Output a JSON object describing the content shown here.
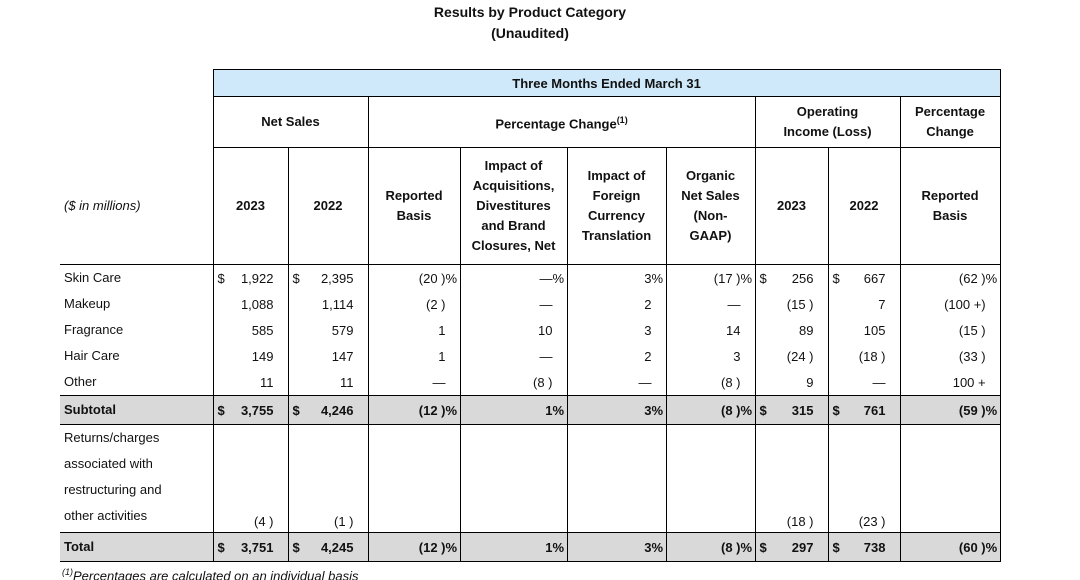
{
  "page_title": {
    "line1": "Results by Product Category",
    "line2": "(Unaudited)"
  },
  "table": {
    "span_header": "Three Months Ended March 31",
    "corner_label": "($ in millions)",
    "colors": {
      "span_header_bg": "#cfe9fa",
      "summary_row_bg": "#d9d9d9",
      "border": "#000000"
    },
    "groups": [
      {
        "label": "Net Sales",
        "sup": ""
      },
      {
        "label": "Percentage Change",
        "sup": "(1)"
      },
      {
        "label": "Operating\nIncome (Loss)",
        "sup": ""
      },
      {
        "label": "Percentage\nChange",
        "sup": ""
      }
    ],
    "columns": [
      "2023",
      "2022",
      "Reported\nBasis",
      "Impact of\nAcquisitions,\nDivestitures\nand Brand\nClosures, Net",
      "Impact of\nForeign\nCurrency\nTranslation",
      "Organic\nNet Sales\n(Non-\nGAAP)",
      "2023",
      "2022",
      "Reported\nBasis"
    ],
    "rows": [
      {
        "label": "Skin Care",
        "style": "normal",
        "cells": [
          {
            "d": "$",
            "v": "1,922",
            "s": ""
          },
          {
            "d": "$",
            "v": "2,395",
            "s": ""
          },
          {
            "d": "",
            "v": "(20 )",
            "s": "%"
          },
          {
            "d": "",
            "v": "—",
            "s": "%"
          },
          {
            "d": "",
            "v": "3",
            "s": "%"
          },
          {
            "d": "",
            "v": "(17 )",
            "s": "%"
          },
          {
            "d": "$",
            "v": "256",
            "s": ""
          },
          {
            "d": "$",
            "v": "667",
            "s": ""
          },
          {
            "d": "",
            "v": "(62 )",
            "s": "%"
          }
        ]
      },
      {
        "label": "Makeup",
        "style": "normal",
        "cells": [
          {
            "d": "",
            "v": "1,088",
            "s": ""
          },
          {
            "d": "",
            "v": "1,114",
            "s": ""
          },
          {
            "d": "",
            "v": "(2 )",
            "s": ""
          },
          {
            "d": "",
            "v": "—",
            "s": ""
          },
          {
            "d": "",
            "v": "2",
            "s": ""
          },
          {
            "d": "",
            "v": "—",
            "s": ""
          },
          {
            "d": "",
            "v": "(15 )",
            "s": ""
          },
          {
            "d": "",
            "v": "7",
            "s": ""
          },
          {
            "d": "",
            "v": "(100 +)",
            "s": ""
          }
        ]
      },
      {
        "label": "Fragrance",
        "style": "normal",
        "cells": [
          {
            "d": "",
            "v": "585",
            "s": ""
          },
          {
            "d": "",
            "v": "579",
            "s": ""
          },
          {
            "d": "",
            "v": "1",
            "s": ""
          },
          {
            "d": "",
            "v": "10",
            "s": ""
          },
          {
            "d": "",
            "v": "3",
            "s": ""
          },
          {
            "d": "",
            "v": "14",
            "s": ""
          },
          {
            "d": "",
            "v": "89",
            "s": ""
          },
          {
            "d": "",
            "v": "105",
            "s": ""
          },
          {
            "d": "",
            "v": "(15 )",
            "s": ""
          }
        ]
      },
      {
        "label": "Hair Care",
        "style": "normal",
        "cells": [
          {
            "d": "",
            "v": "149",
            "s": ""
          },
          {
            "d": "",
            "v": "147",
            "s": ""
          },
          {
            "d": "",
            "v": "1",
            "s": ""
          },
          {
            "d": "",
            "v": "—",
            "s": ""
          },
          {
            "d": "",
            "v": "2",
            "s": ""
          },
          {
            "d": "",
            "v": "3",
            "s": ""
          },
          {
            "d": "",
            "v": "(24 )",
            "s": ""
          },
          {
            "d": "",
            "v": "(18 )",
            "s": ""
          },
          {
            "d": "",
            "v": "(33 )",
            "s": ""
          }
        ]
      },
      {
        "label": "Other",
        "style": "normal",
        "cells": [
          {
            "d": "",
            "v": "11",
            "s": ""
          },
          {
            "d": "",
            "v": "11",
            "s": ""
          },
          {
            "d": "",
            "v": "—",
            "s": ""
          },
          {
            "d": "",
            "v": "(8 )",
            "s": ""
          },
          {
            "d": "",
            "v": "—",
            "s": ""
          },
          {
            "d": "",
            "v": "(8 )",
            "s": ""
          },
          {
            "d": "",
            "v": "9",
            "s": ""
          },
          {
            "d": "",
            "v": "—",
            "s": ""
          },
          {
            "d": "",
            "v": "100 +",
            "s": ""
          }
        ]
      },
      {
        "label": "Subtotal",
        "style": "subtotal",
        "cells": [
          {
            "d": "$",
            "v": "3,755",
            "s": ""
          },
          {
            "d": "$",
            "v": "4,246",
            "s": ""
          },
          {
            "d": "",
            "v": "(12 )",
            "s": "%"
          },
          {
            "d": "",
            "v": "1",
            "s": "%"
          },
          {
            "d": "",
            "v": "3",
            "s": "%"
          },
          {
            "d": "",
            "v": "(8 )",
            "s": "%"
          },
          {
            "d": "$",
            "v": "315",
            "s": ""
          },
          {
            "d": "$",
            "v": "761",
            "s": ""
          },
          {
            "d": "",
            "v": "(59 )",
            "s": "%"
          }
        ]
      },
      {
        "label": "Returns/charges\nassociated with\nrestructuring and\nother activities",
        "style": "returns",
        "cells": [
          {
            "d": "",
            "v": "(4 )",
            "s": ""
          },
          {
            "d": "",
            "v": "(1 )",
            "s": ""
          },
          {
            "d": "",
            "v": "",
            "s": ""
          },
          {
            "d": "",
            "v": "",
            "s": ""
          },
          {
            "d": "",
            "v": "",
            "s": ""
          },
          {
            "d": "",
            "v": "",
            "s": ""
          },
          {
            "d": "",
            "v": "(18 )",
            "s": ""
          },
          {
            "d": "",
            "v": "(23 )",
            "s": ""
          },
          {
            "d": "",
            "v": "",
            "s": ""
          }
        ]
      },
      {
        "label": "Total",
        "style": "total",
        "cells": [
          {
            "d": "$",
            "v": "3,751",
            "s": ""
          },
          {
            "d": "$",
            "v": "4,245",
            "s": ""
          },
          {
            "d": "",
            "v": "(12 )",
            "s": "%"
          },
          {
            "d": "",
            "v": "1",
            "s": "%"
          },
          {
            "d": "",
            "v": "3",
            "s": "%"
          },
          {
            "d": "",
            "v": "(8 )",
            "s": "%"
          },
          {
            "d": "$",
            "v": "297",
            "s": ""
          },
          {
            "d": "$",
            "v": "738",
            "s": ""
          },
          {
            "d": "",
            "v": "(60 )",
            "s": "%"
          }
        ]
      }
    ]
  },
  "footnote": {
    "sup": "(1)",
    "text": "Percentages are calculated on an individual basis"
  }
}
